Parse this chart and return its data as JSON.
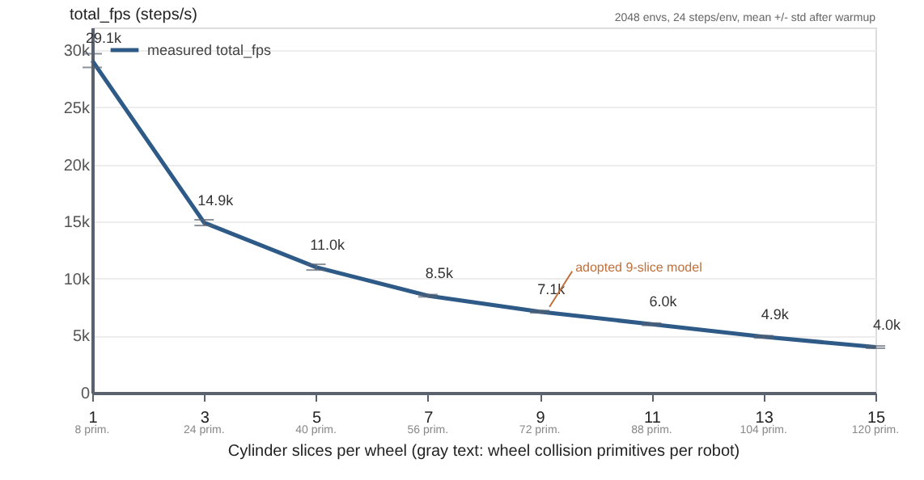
{
  "chart_data": {
    "type": "line",
    "title": "total_fps (steps/s)",
    "subtitle": "2048 envs, 24 steps/env, mean +/- std after warmup",
    "xlabel": "Cylinder slices per wheel  (gray text: wheel collision primitives per robot)",
    "x": [
      1,
      3,
      5,
      7,
      9,
      11,
      13,
      15
    ],
    "series": [
      {
        "name": "measured total_fps",
        "color": "#2e5a87",
        "values": [
          29100,
          14900,
          11000,
          8500,
          7100,
          6000,
          4900,
          4000
        ],
        "errors": [
          600,
          250,
          250,
          100,
          100,
          100,
          100,
          100
        ],
        "value_labels": [
          "29.1k",
          "14.9k",
          "11.0k",
          "8.5k",
          "7.1k",
          "6.0k",
          "4.9k",
          "4.0k"
        ]
      }
    ],
    "xlim": [
      1,
      15
    ],
    "xticks": [
      1,
      3,
      5,
      7,
      9,
      11,
      13,
      15
    ],
    "x2lim": [
      8,
      120
    ],
    "x2ticks": [
      {
        "value": 8,
        "label": "8 prim."
      },
      {
        "value": 24,
        "label": "24 prim."
      },
      {
        "value": 40,
        "label": "40 prim."
      },
      {
        "value": 56,
        "label": "56 prim."
      },
      {
        "value": 72,
        "label": "72 prim."
      },
      {
        "value": 88,
        "label": "88 prim."
      },
      {
        "value": 104,
        "label": "104 prim."
      },
      {
        "value": 120,
        "label": "120 prim."
      }
    ],
    "ylim": [
      0,
      32000
    ],
    "yticks": [
      0,
      {
        "value": 5000,
        "label": "5k"
      },
      {
        "value": 10000,
        "label": "10k"
      },
      {
        "value": 15000,
        "label": "15k"
      },
      {
        "value": 20000,
        "label": "20k"
      },
      {
        "value": 25000,
        "label": "25k"
      },
      {
        "value": 30000,
        "label": "30k"
      }
    ],
    "annotations": [
      {
        "text": "adopted 9-slice model",
        "x": 9,
        "y": 7100
      }
    ],
    "grid": "y",
    "legend": "top left",
    "marker": "none",
    "line_style": "solid"
  }
}
